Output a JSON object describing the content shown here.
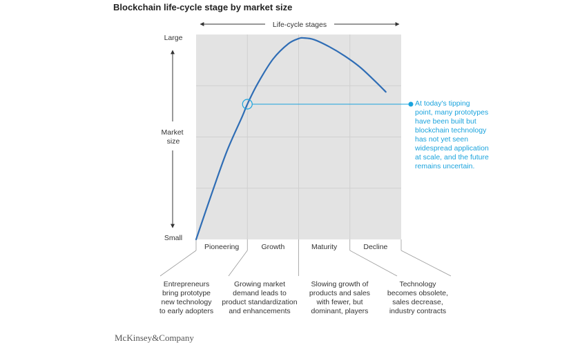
{
  "title": "Blockchain life-cycle stage by market size",
  "footer": "McKinsey&Company",
  "chart_data": {
    "type": "line",
    "title": "Blockchain life-cycle stage by market size",
    "xlabel": "Life-cycle stages",
    "ylabel": "Market size",
    "y_top_label": "Large",
    "y_bottom_label": "Small",
    "stages": [
      "Pioneering",
      "Growth",
      "Maturity",
      "Decline"
    ],
    "stage_descriptions": [
      "Entrepreneurs\nbring prototype\nnew technology\nto early adopters",
      "Growing market\ndemand leads to\nproduct standardization\nand enhancements",
      "Slowing growth of\nproducts and sales\nwith fewer, but\ndominant, players",
      "Technology\nbecomes obsolete,\nsales decrease,\nindustry contracts"
    ],
    "xlim": [
      0,
      4
    ],
    "ylim": [
      0,
      1
    ],
    "series": [
      {
        "x": [
          0,
          0.3,
          0.6,
          0.9,
          1.0,
          1.2,
          1.5,
          1.8,
          2.0,
          2.1,
          2.3,
          2.6,
          2.9,
          3.2,
          3.5,
          3.7
        ],
        "y": [
          0,
          0.22,
          0.43,
          0.6,
          0.66,
          0.76,
          0.88,
          0.955,
          0.98,
          0.983,
          0.975,
          0.94,
          0.895,
          0.84,
          0.77,
          0.72
        ]
      }
    ],
    "annotation": {
      "x": 1.0,
      "y": 0.66,
      "text": "At today's tipping\npoint, many prototypes\nhave been built but\nblockchain technology\nhas not yet seen\nwidespread application\nat scale, and the future\nremains uncertain."
    },
    "colors": {
      "line": "#2f6db5",
      "annotation": "#1aa3dd",
      "plot_bg": "#e3e3e3",
      "grid": "#cfcfcf"
    },
    "grid": true
  }
}
